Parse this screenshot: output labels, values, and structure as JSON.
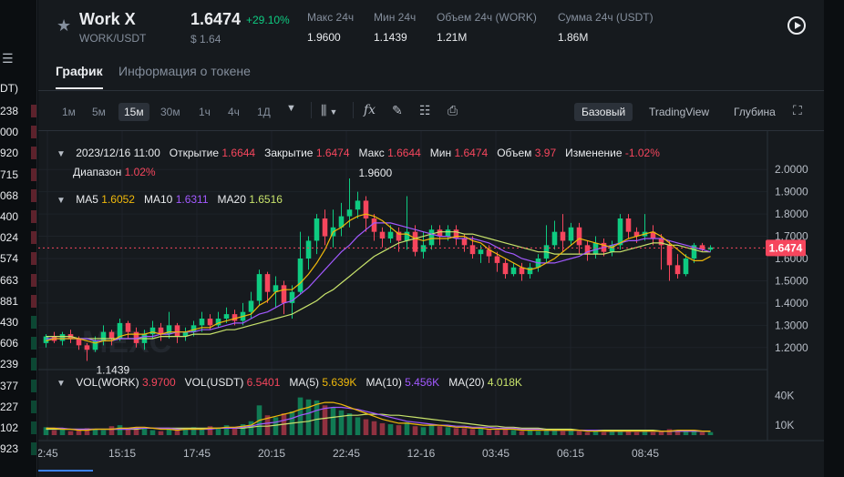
{
  "orderbook_left": {
    "header_fragment": "DT)",
    "prices": [
      {
        "v": "238",
        "side": "red"
      },
      {
        "v": "000",
        "side": "red"
      },
      {
        "v": "920",
        "side": "red"
      },
      {
        "v": "715",
        "side": "red"
      },
      {
        "v": "068",
        "side": "red"
      },
      {
        "v": "400",
        "side": "red"
      },
      {
        "v": "024",
        "side": "red"
      },
      {
        "v": "574",
        "side": "red"
      },
      {
        "v": "663",
        "side": "red"
      },
      {
        "v": "881",
        "side": "red"
      },
      {
        "v": "430",
        "side": "grn"
      },
      {
        "v": "606",
        "side": "grn"
      },
      {
        "v": "239",
        "side": "grn"
      },
      {
        "v": "377",
        "side": "grn"
      },
      {
        "v": "227",
        "side": "grn"
      },
      {
        "v": "102",
        "side": "grn"
      },
      {
        "v": "923",
        "side": "grn"
      }
    ]
  },
  "header": {
    "pair_name": "Work X",
    "pair_symbol": "WORK/USDT",
    "price": "1.6474",
    "change": "+29.10%",
    "price_usd": "$ 1.64",
    "stats": [
      {
        "label": "Макс 24ч",
        "value": "1.9600"
      },
      {
        "label": "Мин 24ч",
        "value": "1.1439"
      },
      {
        "label": "Объем 24ч (WORK)",
        "value": "1.21M"
      },
      {
        "label": "Сумма 24ч (USDT)",
        "value": "1.86M"
      }
    ]
  },
  "tabs": {
    "chart": "График",
    "info": "Информация о токене"
  },
  "toolbar": {
    "timeframes": [
      "1м",
      "5м",
      "15м",
      "30м",
      "1ч",
      "4ч",
      "1Д"
    ],
    "active_timeframe": "15м",
    "views": [
      "Базовый",
      "TradingView",
      "Глубина"
    ],
    "active_view": "Базовый"
  },
  "legend": {
    "date": "2023/12/16 11:00",
    "open_label": "Открытие",
    "open": "1.6644",
    "close_label": "Закрытие",
    "close": "1.6474",
    "high_label": "Макс",
    "high": "1.6644",
    "low_label": "Мин",
    "low": "1.6474",
    "vol_label": "Объем",
    "vol": "3.97",
    "chg_label": "Изменение",
    "chg": "-1.02%",
    "range_label": "Диапазон",
    "range": "1.02%",
    "ma5_label": "MA5",
    "ma5": "1.6052",
    "ma10_label": "MA10",
    "ma10": "1.6311",
    "ma20_label": "MA20",
    "ma20": "1.6516",
    "vol_work_label": "VOL(WORK)",
    "vol_work": "3.9700",
    "vol_usdt_label": "VOL(USDT)",
    "vol_usdt": "6.5401",
    "vma5_label": "MA(5)",
    "vma5": "5.639K",
    "vma10_label": "MA(10)",
    "vma10": "5.456K",
    "vma20_label": "MA(20)",
    "vma20": "4.018K"
  },
  "colors": {
    "up": "#0ecb81",
    "down": "#f6465d",
    "ma5": "#f0b90b",
    "ma10": "#a259ff",
    "ma20": "#c8e36b",
    "vma20": "#c8e36b"
  },
  "chart_data": {
    "type": "candlestick",
    "price_axis": [
      "2.0000",
      "1.9000",
      "1.8000",
      "1.7000",
      "1.6000",
      "1.5000",
      "1.4000",
      "1.3000",
      "1.2000"
    ],
    "ylim": [
      1.15,
      2.05
    ],
    "volume_axis": [
      "40K",
      "10K"
    ],
    "time_axis": [
      "2:45",
      "15:15",
      "17:45",
      "20:15",
      "22:45",
      "12-16",
      "03:45",
      "06:15",
      "08:45"
    ],
    "current_price_label": "1.6474",
    "high_marker": "1.9600",
    "low_marker": "1.1439",
    "candles": [
      [
        1.22,
        1.25,
        1.2,
        1.26
      ],
      [
        1.25,
        1.23,
        1.22,
        1.27
      ],
      [
        1.23,
        1.26,
        1.21,
        1.27
      ],
      [
        1.26,
        1.24,
        1.22,
        1.28
      ],
      [
        1.24,
        1.21,
        1.19,
        1.25
      ],
      [
        1.21,
        1.19,
        1.14,
        1.22
      ],
      [
        1.19,
        1.23,
        1.18,
        1.25
      ],
      [
        1.23,
        1.27,
        1.21,
        1.3
      ],
      [
        1.27,
        1.24,
        1.21,
        1.28
      ],
      [
        1.24,
        1.31,
        1.23,
        1.33
      ],
      [
        1.31,
        1.27,
        1.24,
        1.32
      ],
      [
        1.27,
        1.22,
        1.2,
        1.29
      ],
      [
        1.22,
        1.26,
        1.19,
        1.28
      ],
      [
        1.26,
        1.29,
        1.24,
        1.32
      ],
      [
        1.29,
        1.26,
        1.23,
        1.31
      ],
      [
        1.26,
        1.3,
        1.24,
        1.36
      ],
      [
        1.3,
        1.25,
        1.22,
        1.31
      ],
      [
        1.25,
        1.27,
        1.23,
        1.29
      ],
      [
        1.27,
        1.3,
        1.25,
        1.32
      ],
      [
        1.3,
        1.33,
        1.27,
        1.36
      ],
      [
        1.33,
        1.3,
        1.28,
        1.35
      ],
      [
        1.3,
        1.33,
        1.29,
        1.36
      ],
      [
        1.33,
        1.35,
        1.31,
        1.38
      ],
      [
        1.35,
        1.32,
        1.3,
        1.37
      ],
      [
        1.32,
        1.36,
        1.3,
        1.4
      ],
      [
        1.36,
        1.41,
        1.33,
        1.45
      ],
      [
        1.41,
        1.53,
        1.39,
        1.55
      ],
      [
        1.53,
        1.45,
        1.4,
        1.54
      ],
      [
        1.45,
        1.48,
        1.38,
        1.52
      ],
      [
        1.48,
        1.4,
        1.35,
        1.5
      ],
      [
        1.4,
        1.45,
        1.33,
        1.48
      ],
      [
        1.45,
        1.6,
        1.44,
        1.72
      ],
      [
        1.6,
        1.68,
        1.55,
        1.7
      ],
      [
        1.68,
        1.78,
        1.62,
        1.8
      ],
      [
        1.78,
        1.7,
        1.66,
        1.82
      ],
      [
        1.7,
        1.74,
        1.65,
        1.82
      ],
      [
        1.74,
        1.79,
        1.7,
        1.85
      ],
      [
        1.79,
        1.82,
        1.74,
        1.96
      ],
      [
        1.82,
        1.86,
        1.78,
        1.9
      ],
      [
        1.86,
        1.78,
        1.72,
        1.88
      ],
      [
        1.78,
        1.72,
        1.68,
        1.8
      ],
      [
        1.72,
        1.69,
        1.65,
        1.74
      ],
      [
        1.69,
        1.72,
        1.67,
        1.75
      ],
      [
        1.72,
        1.68,
        1.63,
        1.74
      ],
      [
        1.68,
        1.72,
        1.64,
        1.88
      ],
      [
        1.72,
        1.63,
        1.61,
        1.75
      ],
      [
        1.63,
        1.66,
        1.6,
        1.72
      ],
      [
        1.66,
        1.73,
        1.64,
        1.75
      ],
      [
        1.73,
        1.7,
        1.66,
        1.75
      ],
      [
        1.7,
        1.73,
        1.68,
        1.75
      ],
      [
        1.73,
        1.69,
        1.66,
        1.75
      ],
      [
        1.69,
        1.66,
        1.63,
        1.71
      ],
      [
        1.66,
        1.62,
        1.6,
        1.7
      ],
      [
        1.62,
        1.64,
        1.58,
        1.66
      ],
      [
        1.64,
        1.61,
        1.58,
        1.66
      ],
      [
        1.61,
        1.58,
        1.54,
        1.63
      ],
      [
        1.58,
        1.53,
        1.51,
        1.6
      ],
      [
        1.53,
        1.56,
        1.52,
        1.58
      ],
      [
        1.56,
        1.53,
        1.5,
        1.58
      ],
      [
        1.53,
        1.56,
        1.51,
        1.58
      ],
      [
        1.56,
        1.6,
        1.54,
        1.62
      ],
      [
        1.6,
        1.66,
        1.58,
        1.75
      ],
      [
        1.66,
        1.72,
        1.64,
        1.77
      ],
      [
        1.72,
        1.68,
        1.63,
        1.8
      ],
      [
        1.68,
        1.74,
        1.66,
        1.76
      ],
      [
        1.74,
        1.66,
        1.62,
        1.76
      ],
      [
        1.66,
        1.62,
        1.59,
        1.68
      ],
      [
        1.62,
        1.67,
        1.6,
        1.7
      ],
      [
        1.67,
        1.63,
        1.61,
        1.69
      ],
      [
        1.63,
        1.66,
        1.61,
        1.68
      ],
      [
        1.66,
        1.78,
        1.64,
        1.8
      ],
      [
        1.78,
        1.72,
        1.69,
        1.8
      ],
      [
        1.72,
        1.7,
        1.67,
        1.74
      ],
      [
        1.7,
        1.72,
        1.68,
        1.8
      ],
      [
        1.72,
        1.69,
        1.66,
        1.75
      ],
      [
        1.69,
        1.66,
        1.55,
        1.71
      ],
      [
        1.66,
        1.57,
        1.5,
        1.68
      ],
      [
        1.57,
        1.53,
        1.51,
        1.62
      ],
      [
        1.53,
        1.6,
        1.52,
        1.62
      ],
      [
        1.6,
        1.66,
        1.58,
        1.67
      ],
      [
        1.66,
        1.64,
        1.63,
        1.67
      ],
      [
        1.64,
        1.65,
        1.63,
        1.66
      ]
    ],
    "ma5": [
      1.23,
      1.24,
      1.24,
      1.24,
      1.24,
      1.23,
      1.22,
      1.23,
      1.23,
      1.25,
      1.26,
      1.26,
      1.26,
      1.27,
      1.26,
      1.27,
      1.27,
      1.27,
      1.28,
      1.29,
      1.29,
      1.31,
      1.32,
      1.33,
      1.34,
      1.35,
      1.39,
      1.41,
      1.45,
      1.46,
      1.46,
      1.49,
      1.53,
      1.58,
      1.64,
      1.72,
      1.74,
      1.77,
      1.79,
      1.8,
      1.79,
      1.77,
      1.74,
      1.71,
      1.71,
      1.69,
      1.68,
      1.69,
      1.69,
      1.69,
      1.7,
      1.7,
      1.68,
      1.67,
      1.64,
      1.62,
      1.6,
      1.58,
      1.56,
      1.55,
      1.56,
      1.58,
      1.6,
      1.63,
      1.66,
      1.69,
      1.68,
      1.67,
      1.66,
      1.65,
      1.67,
      1.69,
      1.7,
      1.71,
      1.72,
      1.7,
      1.67,
      1.64,
      1.61,
      1.59,
      1.59,
      1.61
    ],
    "ma10": [
      1.24,
      1.24,
      1.24,
      1.24,
      1.24,
      1.24,
      1.23,
      1.23,
      1.23,
      1.24,
      1.24,
      1.24,
      1.25,
      1.25,
      1.26,
      1.26,
      1.27,
      1.27,
      1.27,
      1.28,
      1.28,
      1.29,
      1.3,
      1.31,
      1.31,
      1.33,
      1.35,
      1.36,
      1.38,
      1.4,
      1.41,
      1.44,
      1.47,
      1.51,
      1.55,
      1.59,
      1.63,
      1.66,
      1.7,
      1.73,
      1.76,
      1.76,
      1.76,
      1.75,
      1.74,
      1.73,
      1.72,
      1.71,
      1.7,
      1.7,
      1.69,
      1.69,
      1.69,
      1.68,
      1.67,
      1.65,
      1.63,
      1.62,
      1.6,
      1.59,
      1.58,
      1.58,
      1.58,
      1.59,
      1.6,
      1.61,
      1.63,
      1.64,
      1.65,
      1.66,
      1.67,
      1.68,
      1.68,
      1.69,
      1.69,
      1.69,
      1.68,
      1.67,
      1.66,
      1.65,
      1.64,
      1.63
    ],
    "ma20": [
      1.25,
      1.25,
      1.25,
      1.25,
      1.24,
      1.24,
      1.24,
      1.24,
      1.24,
      1.24,
      1.24,
      1.24,
      1.24,
      1.24,
      1.25,
      1.25,
      1.25,
      1.25,
      1.26,
      1.26,
      1.26,
      1.27,
      1.28,
      1.28,
      1.29,
      1.3,
      1.31,
      1.32,
      1.33,
      1.34,
      1.35,
      1.37,
      1.39,
      1.41,
      1.44,
      1.46,
      1.49,
      1.52,
      1.55,
      1.58,
      1.61,
      1.63,
      1.65,
      1.67,
      1.68,
      1.69,
      1.7,
      1.71,
      1.72,
      1.72,
      1.72,
      1.71,
      1.71,
      1.7,
      1.69,
      1.68,
      1.67,
      1.66,
      1.65,
      1.64,
      1.63,
      1.63,
      1.62,
      1.62,
      1.62,
      1.62,
      1.62,
      1.62,
      1.62,
      1.63,
      1.63,
      1.64,
      1.65,
      1.66,
      1.67,
      1.67,
      1.66,
      1.66,
      1.65,
      1.64,
      1.63,
      1.63
    ],
    "volumes": [
      8,
      5,
      6,
      4,
      5,
      7,
      6,
      5,
      9,
      10,
      6,
      8,
      7,
      5,
      4,
      6,
      5,
      7,
      8,
      6,
      9,
      7,
      10,
      8,
      11,
      14,
      30,
      20,
      18,
      22,
      24,
      38,
      36,
      35,
      30,
      28,
      25,
      22,
      18,
      16,
      14,
      12,
      11,
      10,
      13,
      9,
      8,
      10,
      9,
      8,
      7,
      7,
      6,
      7,
      6,
      5,
      6,
      5,
      4,
      5,
      4,
      6,
      5,
      4,
      5,
      4,
      3,
      4,
      3,
      4,
      5,
      4,
      3,
      4,
      3,
      4,
      6,
      5,
      5,
      4,
      3,
      3
    ],
    "vol_ma5": [
      7,
      7,
      6,
      6,
      5,
      5,
      6,
      6,
      6,
      7,
      7,
      8,
      8,
      7,
      6,
      6,
      5,
      6,
      6,
      6,
      7,
      7,
      8,
      8,
      9,
      10,
      15,
      17,
      19,
      21,
      23,
      26,
      28,
      31,
      33,
      33,
      31,
      28,
      25,
      22,
      19,
      16,
      14,
      12,
      12,
      11,
      10,
      10,
      10,
      9,
      8,
      8,
      7,
      7,
      6,
      6,
      6,
      6,
      5,
      5,
      5,
      5,
      5,
      5,
      5,
      5,
      4,
      4,
      4,
      4,
      4,
      4,
      4,
      4,
      4,
      4,
      4,
      5,
      5,
      5,
      4,
      4
    ],
    "vol_ma10": [
      7,
      7,
      7,
      6,
      6,
      6,
      6,
      6,
      6,
      6,
      6,
      7,
      7,
      7,
      7,
      7,
      6,
      6,
      6,
      6,
      6,
      7,
      7,
      7,
      8,
      9,
      11,
      12,
      13,
      15,
      17,
      20,
      22,
      25,
      27,
      28,
      28,
      27,
      26,
      24,
      22,
      20,
      18,
      16,
      14,
      13,
      12,
      11,
      10,
      10,
      9,
      9,
      8,
      8,
      8,
      7,
      7,
      7,
      6,
      6,
      6,
      5,
      5,
      5,
      5,
      5,
      5,
      5,
      4,
      4,
      4,
      4,
      4,
      4,
      4,
      4,
      4,
      4,
      4,
      4,
      4,
      4
    ],
    "vol_ma20": [
      6,
      6,
      6,
      6,
      6,
      6,
      6,
      6,
      6,
      6,
      6,
      6,
      7,
      7,
      7,
      7,
      7,
      7,
      7,
      7,
      7,
      7,
      7,
      7,
      7,
      8,
      9,
      9,
      10,
      11,
      12,
      13,
      14,
      16,
      17,
      18,
      19,
      20,
      20,
      21,
      21,
      21,
      20,
      20,
      19,
      18,
      17,
      16,
      15,
      14,
      13,
      12,
      11,
      10,
      9,
      9,
      8,
      8,
      7,
      7,
      7,
      6,
      6,
      6,
      6,
      5,
      5,
      5,
      5,
      5,
      5,
      5,
      5,
      5,
      5,
      4,
      4,
      4,
      4,
      4,
      4,
      4
    ]
  }
}
